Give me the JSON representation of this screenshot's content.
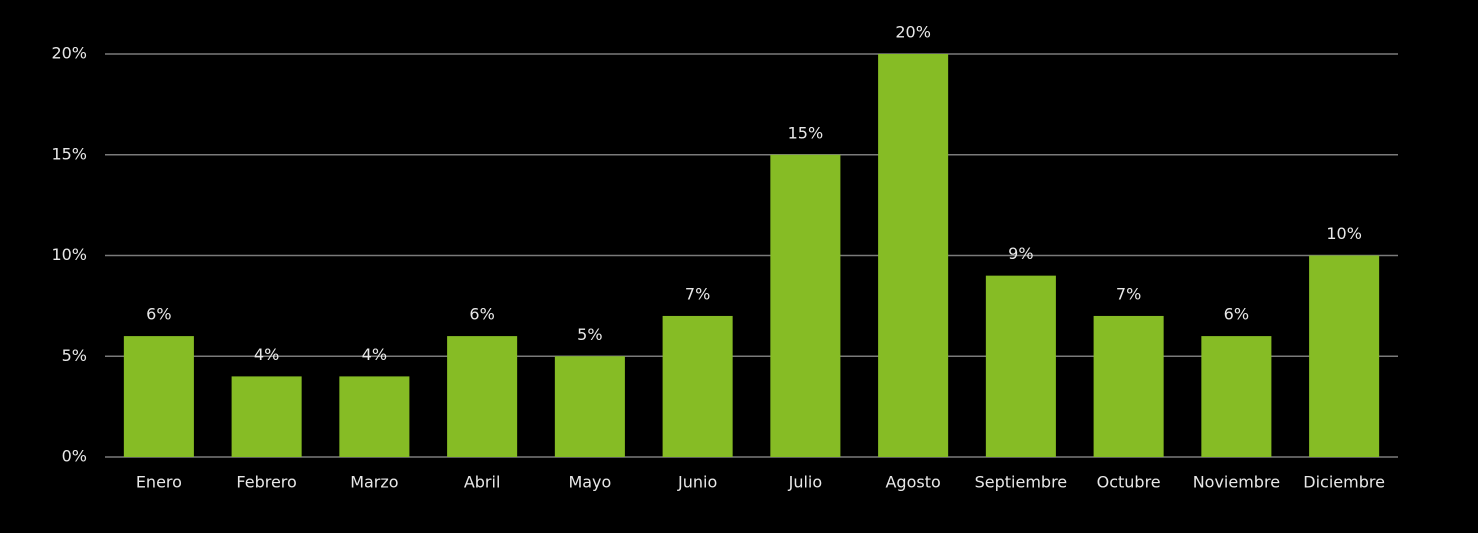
{
  "chart_data": {
    "type": "bar",
    "categories": [
      "Enero",
      "Febrero",
      "Marzo",
      "Abril",
      "Mayo",
      "Junio",
      "Julio",
      "Agosto",
      "Septiembre",
      "Octubre",
      "Noviembre",
      "Diciembre"
    ],
    "values": [
      6,
      4,
      4,
      6,
      5,
      7,
      15,
      20,
      9,
      7,
      6,
      10
    ],
    "value_labels": [
      "6%",
      "4%",
      "4%",
      "6%",
      "5%",
      "7%",
      "15%",
      "20%",
      "9%",
      "7%",
      "6%",
      "10%"
    ],
    "color": "#86bc25",
    "ylim": [
      0,
      20
    ],
    "yticks": [
      {
        "value": 0,
        "label": "0%"
      },
      {
        "value": 5,
        "label": "5%"
      },
      {
        "value": 10,
        "label": "10%"
      },
      {
        "value": 15,
        "label": "15%"
      },
      {
        "value": 20,
        "label": "20%"
      }
    ],
    "grid": true
  }
}
